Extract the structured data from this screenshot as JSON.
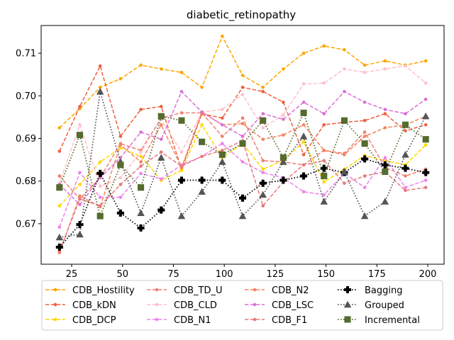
{
  "chart_data": {
    "type": "line",
    "title": "diabetic_retinopathy",
    "xlabel": "",
    "ylabel": "",
    "x": [
      19,
      29,
      39,
      49,
      59,
      69,
      79,
      89,
      99,
      109,
      119,
      129,
      139,
      149,
      159,
      169,
      179,
      189,
      199
    ],
    "xlim": [
      10,
      208
    ],
    "ylim": [
      0.6605,
      0.7165
    ],
    "xticks": [
      25,
      50,
      75,
      100,
      125,
      150,
      175,
      200
    ],
    "xtick_labels": [
      "25",
      "50",
      "75",
      "100",
      "125",
      "150",
      "175",
      "200"
    ],
    "yticks": [
      0.67,
      0.68,
      0.69,
      0.7,
      0.71
    ],
    "ytick_labels": [
      "0.67",
      "0.68",
      "0.69",
      "0.70",
      "0.71"
    ],
    "legend_position": "below",
    "legend_columns": 4,
    "series": [
      {
        "name": "CDB_Hostility",
        "color": "#ffa500",
        "marker": "dot",
        "dash": "dashed",
        "values": [
          0.6925,
          0.697,
          0.702,
          0.704,
          0.7072,
          0.7063,
          0.7055,
          0.702,
          0.714,
          0.7048,
          0.702,
          0.7063,
          0.71,
          0.7117,
          0.7108,
          0.7072,
          0.7082,
          0.7072,
          0.7082
        ]
      },
      {
        "name": "CDB_kDN",
        "color": "#ee6040",
        "marker": "dot",
        "dash": "dashed",
        "values": [
          0.687,
          0.6975,
          0.707,
          0.6905,
          0.6968,
          0.6975,
          0.6828,
          0.6958,
          0.6948,
          0.702,
          0.701,
          0.6985,
          0.6862,
          0.6932,
          0.6938,
          0.6942,
          0.6958,
          0.6918,
          0.6932
        ]
      },
      {
        "name": "CDB_DCP",
        "color": "#ffd700",
        "marker": "dot",
        "dash": "dashed",
        "values": [
          0.6742,
          0.6792,
          0.6845,
          0.6878,
          0.6858,
          0.6802,
          0.6825,
          0.6932,
          0.6855,
          0.6888,
          0.6828,
          0.6848,
          0.6892,
          0.6798,
          0.6828,
          0.686,
          0.6848,
          0.6838,
          0.6885
        ]
      },
      {
        "name": "CDB_TD_U",
        "color": "#f08070",
        "marker": "dot",
        "dash": "dashed",
        "values": [
          0.6812,
          0.6758,
          0.6808,
          0.6888,
          0.6872,
          0.6948,
          0.696,
          0.696,
          0.6905,
          0.6948,
          0.6848,
          0.6845,
          0.6838,
          0.6872,
          0.6865,
          0.6915,
          0.6832,
          0.6812,
          0.6828
        ]
      },
      {
        "name": "CDB_CLD",
        "color": "#ffc0cb",
        "marker": "dot",
        "dash": "dashed",
        "values": [
          0.6795,
          0.6932,
          0.6788,
          0.6808,
          0.6868,
          0.6945,
          0.6868,
          0.6962,
          0.6968,
          0.7003,
          0.6925,
          0.6955,
          0.7028,
          0.703,
          0.7063,
          0.7055,
          0.7063,
          0.707,
          0.703
        ]
      },
      {
        "name": "CDB_N1",
        "color": "#ee82ee",
        "marker": "dot",
        "dash": "dashed",
        "values": [
          0.6692,
          0.682,
          0.6762,
          0.6762,
          0.6818,
          0.6805,
          0.6838,
          0.6858,
          0.6888,
          0.6845,
          0.682,
          0.6808,
          0.6775,
          0.6768,
          0.6818,
          0.6785,
          0.6855,
          0.6785,
          0.6802
        ]
      },
      {
        "name": "CDB_N2",
        "color": "#f4845f",
        "marker": "dot",
        "dash": "dashed",
        "values": [
          0.6632,
          0.6765,
          0.674,
          0.6885,
          0.6845,
          0.6932,
          0.6832,
          0.6962,
          0.6932,
          0.6935,
          0.6898,
          0.6908,
          0.6932,
          0.6872,
          0.6862,
          0.6905,
          0.6925,
          0.6932,
          0.6952
        ]
      },
      {
        "name": "CDB_LSC",
        "color": "#da70d6",
        "marker": "dot",
        "dash": "dashed",
        "values": [
          0.6792,
          0.6745,
          0.6808,
          0.6855,
          0.6915,
          0.6898,
          0.701,
          0.6962,
          0.6932,
          0.6905,
          0.6958,
          0.6945,
          0.6985,
          0.6958,
          0.701,
          0.6985,
          0.6968,
          0.6958,
          0.6992
        ]
      },
      {
        "name": "CDB_F1",
        "color": "#e9797b",
        "marker": "dot",
        "dash": "dashed",
        "values": [
          0.6635,
          0.6758,
          0.6742,
          0.6792,
          0.6835,
          0.6868,
          0.6835,
          0.6858,
          0.6872,
          0.6895,
          0.6742,
          0.6798,
          0.6838,
          0.6848,
          0.6795,
          0.6812,
          0.6822,
          0.6778,
          0.6785
        ]
      },
      {
        "name": "Bagging",
        "color": "#000000",
        "marker": "plus",
        "dash": "dotted",
        "values": [
          0.6645,
          0.6698,
          0.6818,
          0.6725,
          0.669,
          0.6732,
          0.6802,
          0.6802,
          0.6802,
          0.676,
          0.6795,
          0.6802,
          0.6812,
          0.683,
          0.682,
          0.6852,
          0.6838,
          0.683,
          0.682
        ]
      },
      {
        "name": "Grouped",
        "color": "#555555",
        "marker": "triangle",
        "dash": "dotted",
        "values": [
          0.6668,
          0.6675,
          0.701,
          0.6845,
          0.6725,
          0.6855,
          0.6718,
          0.6775,
          0.6845,
          0.6718,
          0.6768,
          0.6845,
          0.6905,
          0.6752,
          0.6822,
          0.6718,
          0.6752,
          0.6862,
          0.6952
        ]
      },
      {
        "name": "Incremental",
        "color": "#556b2f",
        "marker": "square",
        "dash": "dotted",
        "values": [
          0.6785,
          0.6908,
          0.6718,
          0.6838,
          0.6785,
          0.6952,
          0.6942,
          0.6892,
          0.6862,
          0.6888,
          0.6942,
          0.6855,
          0.696,
          0.6812,
          0.6942,
          0.6888,
          0.6822,
          0.6932,
          0.6898
        ]
      }
    ]
  }
}
